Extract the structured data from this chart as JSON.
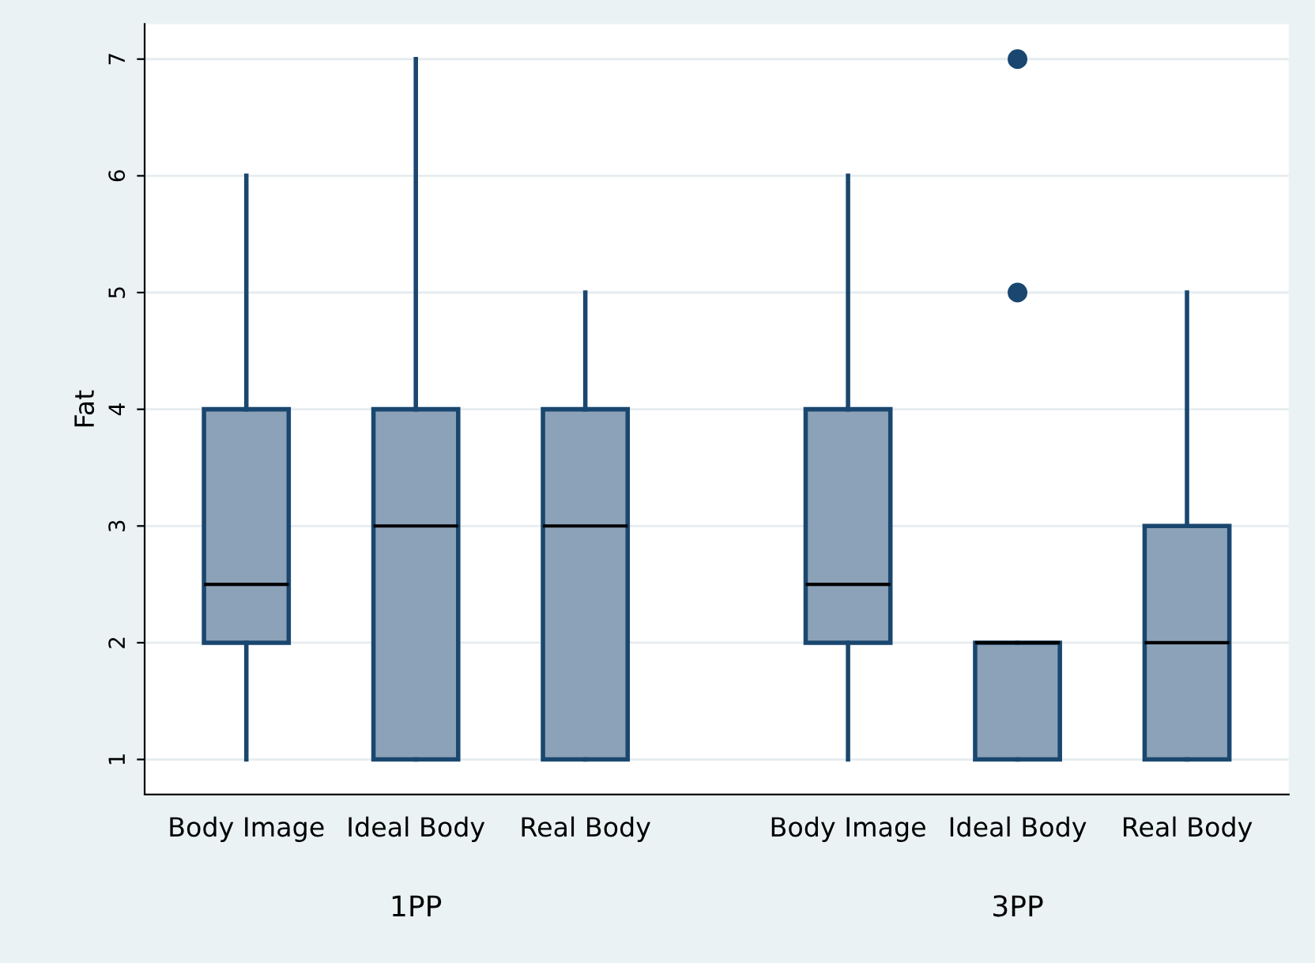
{
  "chart_data": {
    "type": "box",
    "ylabel": "Fat",
    "categories": [
      "Body Image",
      "Ideal Body",
      "Real Body",
      "Body Image",
      "Ideal Body",
      "Real Body"
    ],
    "series": [
      {
        "color": "#8ca2b8",
        "boxes": [
          {
            "low": 1,
            "q1": 2,
            "median": 2.5,
            "q3": 4,
            "high": 6
          },
          {
            "low": 1,
            "q1": 1,
            "median": 3,
            "q3": 4,
            "high": 7
          },
          {
            "low": 1,
            "q1": 1,
            "median": 3,
            "q3": 4,
            "high": 5
          },
          {
            "low": 1,
            "q1": 2,
            "median": 2.5,
            "q3": 4,
            "high": 6
          },
          {
            "low": 1,
            "q1": 1,
            "median": 2,
            "q3": 2,
            "high": 2,
            "outliers": [
              5,
              7
            ]
          },
          {
            "low": 1,
            "q1": 1,
            "median": 2,
            "q3": 3,
            "high": 5
          }
        ]
      }
    ],
    "ylim": [
      0.7,
      7.3
    ],
    "yticks": [
      1,
      2,
      3,
      4,
      5,
      6,
      7
    ],
    "grid": "y",
    "annotations": [
      "1PP",
      "3PP"
    ]
  }
}
